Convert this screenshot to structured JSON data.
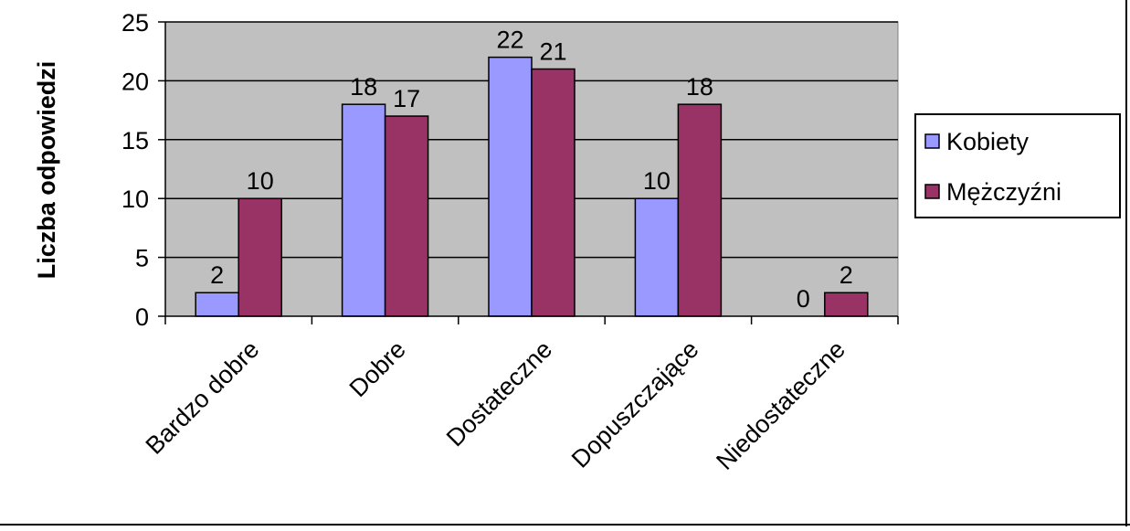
{
  "chart_data": {
    "type": "bar",
    "title": "",
    "xlabel": "",
    "ylabel": "Liczba odpowiedzi",
    "ylim": [
      0,
      25
    ],
    "yticks": [
      0,
      5,
      10,
      15,
      20,
      25
    ],
    "categories": [
      "Bardzo dobre",
      "Dobre",
      "Dostateczne",
      "Dopuszczające",
      "Niedostateczne"
    ],
    "series": [
      {
        "name": "Kobiety",
        "values": [
          2,
          18,
          22,
          10,
          0
        ],
        "color": "#9999ff"
      },
      {
        "name": "Mężczyźni",
        "values": [
          10,
          17,
          21,
          18,
          2
        ],
        "color": "#993366"
      }
    ],
    "plot_background": "#c0c0c0",
    "grid": true,
    "legend_position": "right",
    "data_labels": true
  }
}
